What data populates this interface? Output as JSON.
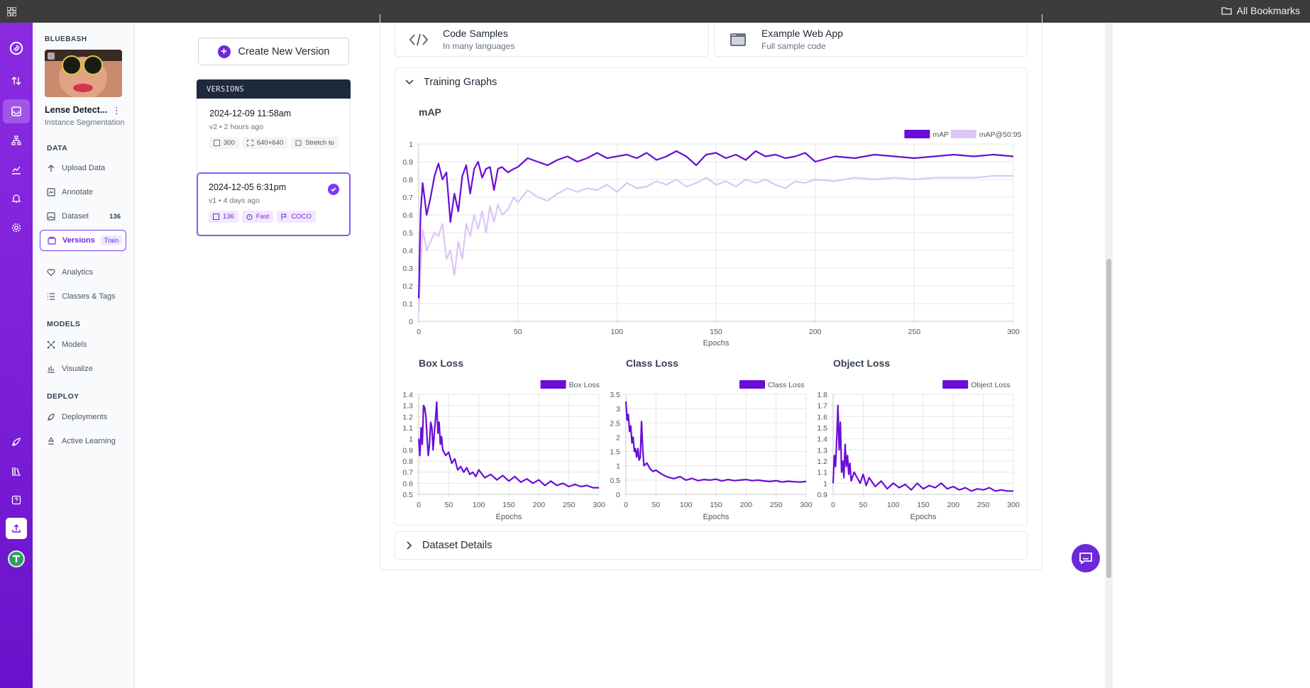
{
  "browser": {
    "bookmarks_label": "All Bookmarks"
  },
  "sidebar": {
    "workspace": "BLUEBASH",
    "project_name": "Lense Detect...",
    "project_type": "Instance Segmentation",
    "sections": {
      "data": "DATA",
      "models": "MODELS",
      "deploy": "DEPLOY"
    },
    "items": {
      "upload": "Upload Data",
      "annotate": "Annotate",
      "dataset": "Dataset",
      "dataset_count": "136",
      "versions": "Versions",
      "versions_badge": "Train",
      "analytics": "Analytics",
      "classes": "Classes & Tags",
      "models": "Models",
      "visualize": "Visualize",
      "deployments": "Deployments",
      "active_learning": "Active Learning"
    }
  },
  "versions": {
    "create_label": "Create New Version",
    "header": "VERSIONS",
    "list": [
      {
        "date": "2024-12-09 11:58am",
        "meta": "v2 • 2 hours ago",
        "images": "300",
        "size": "640×640",
        "resize": "Stretch to"
      },
      {
        "date": "2024-12-05 6:31pm",
        "meta": "v1 • 4 days ago",
        "images": "136",
        "speed": "Fast",
        "format": "COCO"
      }
    ]
  },
  "samples": {
    "code_title": "Code Samples",
    "code_sub": "In many languages",
    "web_title": "Example Web App",
    "web_sub": "Full sample code"
  },
  "training": {
    "header": "Training Graphs",
    "dataset_details": "Dataset Details"
  },
  "colors": {
    "primary": "#6a0dd6",
    "secondary": "#dcc6f5"
  },
  "chart_data": [
    {
      "type": "line",
      "title": "mAP",
      "xlabel": "Epochs",
      "ylabel": "",
      "xlim": [
        0,
        300
      ],
      "ylim": [
        0,
        1.0
      ],
      "xticks": [
        0,
        50,
        100,
        150,
        200,
        250,
        300
      ],
      "yticks": [
        0,
        0.1,
        0.2,
        0.3,
        0.4,
        0.5,
        0.6,
        0.7,
        0.8,
        0.9,
        1.0
      ],
      "legend": "top-right",
      "series": [
        {
          "name": "mAP",
          "color": "#6a0dd6",
          "x": [
            0,
            1,
            2,
            4,
            6,
            8,
            10,
            12,
            14,
            16,
            18,
            20,
            22,
            24,
            26,
            28,
            30,
            32,
            34,
            36,
            38,
            40,
            42,
            45,
            48,
            50,
            55,
            60,
            65,
            70,
            75,
            80,
            85,
            90,
            95,
            100,
            105,
            110,
            115,
            120,
            125,
            130,
            135,
            140,
            145,
            150,
            155,
            160,
            165,
            170,
            175,
            180,
            185,
            190,
            195,
            200,
            210,
            220,
            230,
            240,
            250,
            260,
            270,
            280,
            290,
            300
          ],
          "y": [
            0.13,
            0.62,
            0.78,
            0.6,
            0.7,
            0.82,
            0.89,
            0.8,
            0.84,
            0.56,
            0.72,
            0.62,
            0.82,
            0.88,
            0.72,
            0.86,
            0.9,
            0.81,
            0.86,
            0.87,
            0.74,
            0.86,
            0.87,
            0.84,
            0.86,
            0.87,
            0.92,
            0.9,
            0.88,
            0.91,
            0.93,
            0.9,
            0.92,
            0.95,
            0.92,
            0.93,
            0.94,
            0.92,
            0.95,
            0.91,
            0.93,
            0.96,
            0.93,
            0.88,
            0.94,
            0.95,
            0.92,
            0.94,
            0.91,
            0.96,
            0.93,
            0.94,
            0.92,
            0.93,
            0.95,
            0.9,
            0.93,
            0.92,
            0.94,
            0.93,
            0.92,
            0.93,
            0.94,
            0.93,
            0.94,
            0.93
          ]
        },
        {
          "name": "mAP@50:95",
          "color": "#dcc6f5",
          "x": [
            0,
            1,
            2,
            4,
            6,
            8,
            10,
            12,
            14,
            16,
            18,
            20,
            22,
            24,
            26,
            28,
            30,
            32,
            34,
            36,
            38,
            40,
            42,
            45,
            48,
            50,
            55,
            60,
            65,
            70,
            75,
            80,
            85,
            90,
            95,
            100,
            105,
            110,
            115,
            120,
            125,
            130,
            135,
            140,
            145,
            150,
            155,
            160,
            165,
            170,
            175,
            180,
            185,
            190,
            195,
            200,
            210,
            220,
            230,
            240,
            250,
            260,
            270,
            280,
            290,
            300
          ],
          "y": [
            0.05,
            0.3,
            0.52,
            0.4,
            0.45,
            0.5,
            0.48,
            0.55,
            0.35,
            0.4,
            0.26,
            0.45,
            0.35,
            0.55,
            0.48,
            0.6,
            0.52,
            0.62,
            0.5,
            0.65,
            0.56,
            0.66,
            0.6,
            0.63,
            0.7,
            0.67,
            0.74,
            0.7,
            0.68,
            0.72,
            0.75,
            0.73,
            0.75,
            0.74,
            0.77,
            0.73,
            0.78,
            0.75,
            0.76,
            0.79,
            0.77,
            0.8,
            0.76,
            0.78,
            0.81,
            0.77,
            0.79,
            0.76,
            0.8,
            0.78,
            0.8,
            0.77,
            0.75,
            0.79,
            0.78,
            0.8,
            0.79,
            0.81,
            0.8,
            0.81,
            0.8,
            0.81,
            0.81,
            0.81,
            0.82,
            0.82
          ]
        }
      ]
    },
    {
      "type": "line",
      "title": "Box Loss",
      "xlabel": "Epochs",
      "xlim": [
        0,
        300
      ],
      "ylim": [
        0.5,
        1.4
      ],
      "xticks": [
        0,
        50,
        100,
        150,
        200,
        250,
        300
      ],
      "yticks": [
        0.5,
        0.6,
        0.7,
        0.8,
        0.9,
        1.0,
        1.1,
        1.2,
        1.3,
        1.4
      ],
      "legend": "top-right",
      "series": [
        {
          "name": "Box Loss",
          "color": "#6a0dd6",
          "x": [
            0,
            2,
            4,
            6,
            8,
            10,
            12,
            14,
            16,
            18,
            20,
            22,
            24,
            26,
            28,
            30,
            32,
            34,
            36,
            38,
            40,
            45,
            50,
            55,
            60,
            65,
            70,
            75,
            80,
            85,
            90,
            95,
            100,
            110,
            120,
            130,
            140,
            150,
            160,
            170,
            180,
            190,
            200,
            210,
            220,
            230,
            240,
            250,
            260,
            270,
            280,
            290,
            300
          ],
          "y": [
            1.0,
            0.85,
            1.1,
            0.95,
            1.3,
            1.28,
            1.2,
            1.0,
            0.85,
            0.95,
            1.15,
            1.1,
            0.9,
            1.05,
            1.18,
            1.33,
            1.05,
            1.15,
            0.95,
            1.02,
            0.9,
            0.85,
            0.88,
            0.78,
            0.82,
            0.72,
            0.75,
            0.7,
            0.74,
            0.68,
            0.7,
            0.66,
            0.72,
            0.65,
            0.68,
            0.63,
            0.67,
            0.62,
            0.66,
            0.61,
            0.64,
            0.6,
            0.63,
            0.58,
            0.62,
            0.58,
            0.6,
            0.57,
            0.59,
            0.57,
            0.58,
            0.56,
            0.56
          ]
        }
      ]
    },
    {
      "type": "line",
      "title": "Class Loss",
      "xlabel": "Epochs",
      "xlim": [
        0,
        300
      ],
      "ylim": [
        0,
        3.5
      ],
      "xticks": [
        0,
        50,
        100,
        150,
        200,
        250,
        300
      ],
      "yticks": [
        0,
        0.5,
        1.0,
        1.5,
        2.0,
        2.5,
        3.0,
        3.5
      ],
      "legend": "top-right",
      "series": [
        {
          "name": "Class Loss",
          "color": "#6a0dd6",
          "x": [
            0,
            2,
            4,
            6,
            8,
            10,
            12,
            14,
            16,
            18,
            20,
            22,
            24,
            26,
            28,
            30,
            35,
            40,
            45,
            50,
            60,
            70,
            80,
            90,
            100,
            110,
            120,
            130,
            140,
            150,
            160,
            170,
            180,
            190,
            200,
            210,
            220,
            230,
            240,
            250,
            260,
            270,
            280,
            290,
            300
          ],
          "y": [
            3.25,
            2.6,
            2.8,
            2.2,
            2.4,
            1.8,
            2.0,
            1.5,
            1.6,
            1.3,
            1.6,
            1.2,
            1.3,
            2.55,
            1.6,
            1.0,
            1.1,
            0.9,
            0.8,
            0.85,
            0.7,
            0.6,
            0.55,
            0.62,
            0.5,
            0.56,
            0.48,
            0.52,
            0.5,
            0.53,
            0.47,
            0.52,
            0.48,
            0.5,
            0.52,
            0.48,
            0.5,
            0.47,
            0.45,
            0.48,
            0.43,
            0.46,
            0.44,
            0.43,
            0.45
          ]
        }
      ]
    },
    {
      "type": "line",
      "title": "Object Loss",
      "xlabel": "Epochs",
      "xlim": [
        0,
        300
      ],
      "ylim": [
        0.9,
        1.8
      ],
      "xticks": [
        0,
        50,
        100,
        150,
        200,
        250,
        300
      ],
      "yticks": [
        0.9,
        1.0,
        1.1,
        1.2,
        1.3,
        1.4,
        1.5,
        1.6,
        1.7,
        1.8
      ],
      "legend": "top-right",
      "series": [
        {
          "name": "Object Loss",
          "color": "#6a0dd6",
          "x": [
            0,
            2,
            4,
            6,
            8,
            10,
            12,
            14,
            16,
            18,
            20,
            22,
            24,
            26,
            28,
            30,
            35,
            40,
            45,
            50,
            55,
            60,
            70,
            80,
            90,
            100,
            110,
            120,
            130,
            140,
            150,
            160,
            170,
            180,
            190,
            200,
            210,
            220,
            230,
            240,
            250,
            260,
            270,
            280,
            290,
            300
          ],
          "y": [
            1.0,
            1.25,
            1.15,
            1.4,
            1.7,
            1.3,
            1.55,
            1.1,
            1.2,
            1.05,
            1.35,
            1.15,
            1.25,
            1.08,
            1.18,
            1.02,
            1.1,
            1.05,
            1.0,
            1.08,
            0.98,
            1.05,
            0.97,
            1.02,
            0.95,
            1.0,
            0.96,
            0.99,
            0.94,
            1.0,
            0.95,
            0.98,
            0.96,
            1.0,
            0.95,
            0.97,
            0.94,
            0.96,
            0.93,
            0.95,
            0.94,
            0.96,
            0.93,
            0.94,
            0.93,
            0.93
          ]
        }
      ]
    }
  ]
}
